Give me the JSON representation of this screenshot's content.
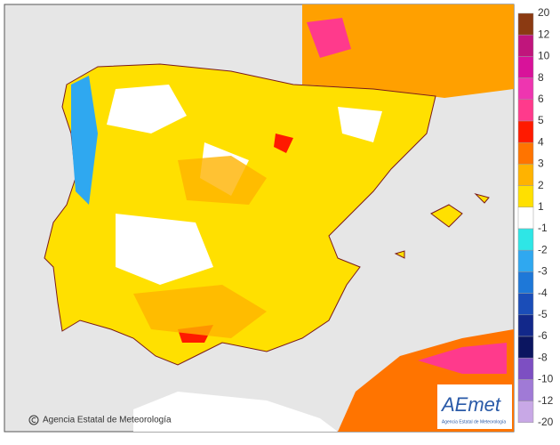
{
  "map": {
    "credit": "Agencia Estatal de Meteorología",
    "logo": {
      "name": "AEmet",
      "subtitle": "Agencia Estatal de Meteorología"
    },
    "legend": {
      "ticks": [
        20,
        12,
        10,
        8,
        6,
        5,
        4,
        3,
        2,
        1,
        -1,
        -2,
        -3,
        -4,
        -5,
        -6,
        -8,
        -10,
        -12,
        -20
      ],
      "colors": [
        "#8b3a12",
        "#c0157c",
        "#d8129a",
        "#ee35b0",
        "#ff3a8c",
        "#ff1a00",
        "#ff7400",
        "#ffb300",
        "#ffe000",
        "#ffffff",
        "#2ee6e6",
        "#2fa8f0",
        "#1e78d8",
        "#1a4db8",
        "#12288a",
        "#0b1560",
        "#7d4fc2",
        "#a07ad6",
        "#c8a8e6"
      ]
    }
  }
}
